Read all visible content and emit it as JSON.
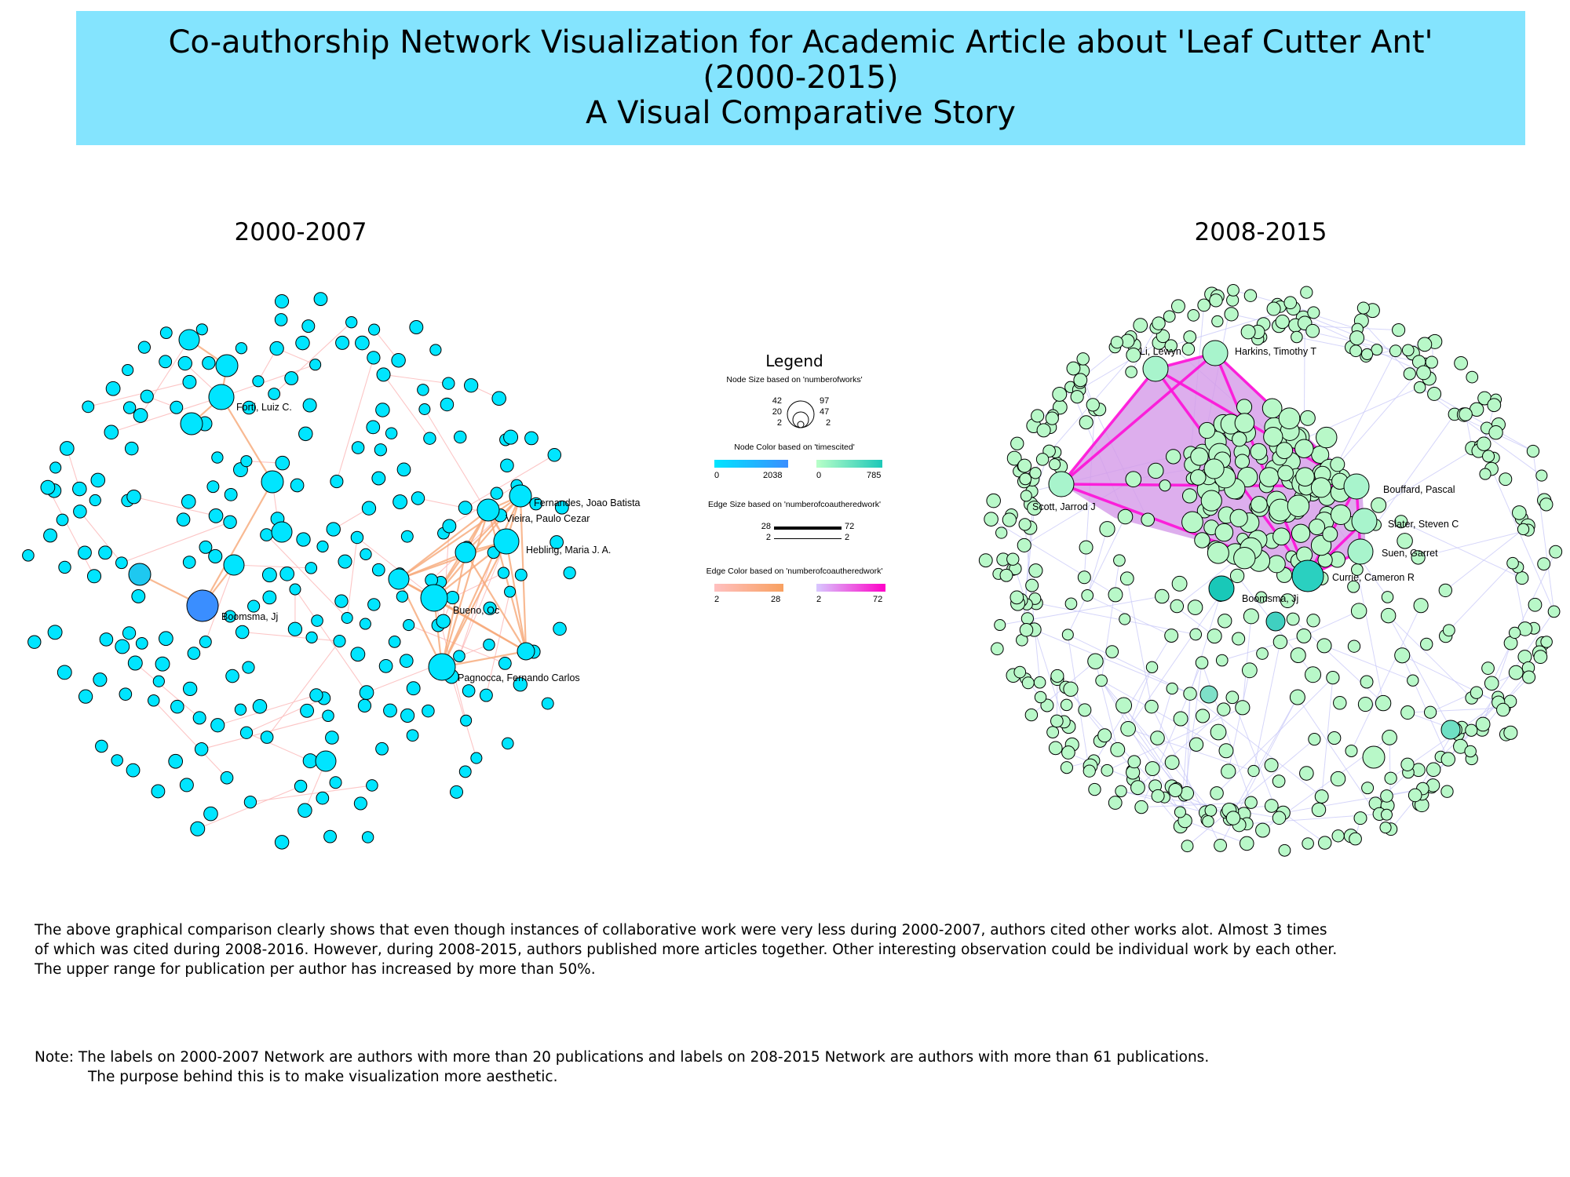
{
  "title": {
    "line1": "Co-authorship Network Visualization for Academic Article about 'Leaf Cutter Ant'",
    "line2": "(2000-2015)",
    "line3": "A Visual Comparative Story"
  },
  "left_network": {
    "period": "2000-2007",
    "labels": [
      "Forti, Luiz C.",
      "Fernandes, Joao Batista",
      "Vieira, Paulo Cezar",
      "Hebling, Maria J. A.",
      "Boomsma, Jj",
      "Bueno, Oc",
      "Pagnocca, Fernando Carlos"
    ]
  },
  "right_network": {
    "period": "2008-2015",
    "labels": [
      "Li, Lewyn",
      "Harkins, Timothy T",
      "Scott, Jarrod J",
      "Bouffard, Pascal",
      "Slater, Steven C",
      "Suen, Garret",
      "Currie, Cameron R",
      "Boomsma, Jj"
    ]
  },
  "legend": {
    "title": "Legend",
    "node_size": {
      "caption": "Node Size based on 'numberofworks'",
      "left_values": [
        "42",
        "20",
        "2"
      ],
      "right_values": [
        "97",
        "47",
        "2"
      ]
    },
    "node_color": {
      "caption": "Node Color based on 'timescited'",
      "left_min": "0",
      "left_max": "2038",
      "right_min": "0",
      "right_max": "785",
      "left_gradient": [
        "#00e5ff",
        "#3a8eff"
      ],
      "right_gradient": [
        "#b8ffc8",
        "#1ec8b8"
      ]
    },
    "edge_size": {
      "caption": "Edge Size based on 'numberofcoautheredwork'",
      "left_max": "28",
      "left_min": "2",
      "right_max": "72",
      "right_min": "2"
    },
    "edge_color": {
      "caption": "Edge Color based on 'numberofcoautheredwork'",
      "left_min": "2",
      "left_max": "28",
      "right_min": "2",
      "right_max": "72",
      "left_gradient": [
        "#ffc0c0",
        "#f8a060"
      ],
      "right_gradient": [
        "#d8c8ff",
        "#ff00c8"
      ]
    }
  },
  "description": {
    "line1": "The above graphical comparison clearly shows that even though instances of collaborative work were very less during 2000-2007, authors cited other works alot. Almost 3 times",
    "line2": "of which was cited during 2008-2016. However, during 2008-2015, authors published more articles together. Other interesting observation could be individual work by each other.",
    "line3": "The upper range for publication per author has increased by more than 50%."
  },
  "note": {
    "prefix": "Note:",
    "line1": "The labels on 2000-2007 Network are authors with more than 20 publications and labels on 208-2015 Network are authors with more than 61 publications.",
    "line2": "The purpose behind this is to make visualization more aesthetic."
  }
}
